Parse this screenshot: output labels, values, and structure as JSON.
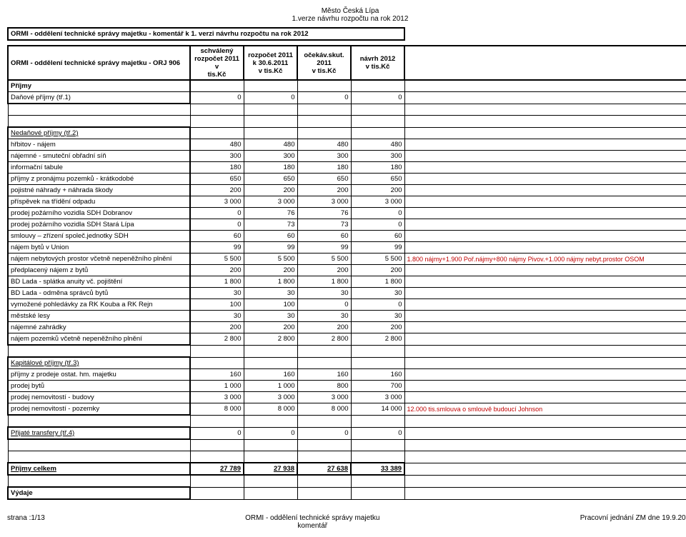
{
  "header": {
    "line1": "Město Česká Lípa",
    "line2": "1.verze návrhu rozpočtu na rok 2012"
  },
  "titleRow": "ORMI - oddělení technické správy majetku - komentář k 1. verzi návrhu rozpočtu  na rok 2012",
  "mainLabel": "ORMI - oddělení technické správy majetku - ORJ 906",
  "colHeaders": {
    "c1": "schválený rozpočet 2011 v tis.Kč",
    "c2": "rozpočet 2011 k 30.6.2011 v tis.Kč",
    "c3": "očekáv.skut. 2011 v tis.Kč",
    "c4": "návrh 2012 v tis.Kč"
  },
  "sections": {
    "prijmy": "Příjmy",
    "danove": "Daňové příjmy (tř.1)",
    "nedanove": "Nedaňové příjmy (tř.2)",
    "kapitalove": "Kapitálové příjmy (tř.3)",
    "transfery": "Přijaté transfery (tř.4)",
    "prijmyCelkem": "Příjmy celkem",
    "vydaje": "Výdaje"
  },
  "rows": {
    "danove": [
      "0",
      "0",
      "0",
      "0"
    ],
    "nedanove_items": [
      [
        "hřbitov - nájem",
        "480",
        "480",
        "480",
        "480",
        ""
      ],
      [
        "nájemné - smuteční obřadní síň",
        "300",
        "300",
        "300",
        "300",
        ""
      ],
      [
        "informační tabule",
        "180",
        "180",
        "180",
        "180",
        ""
      ],
      [
        "příjmy z pronájmu pozemků - krátkodobé",
        "650",
        "650",
        "650",
        "650",
        ""
      ],
      [
        "pojistné náhrady + náhrada škody",
        "200",
        "200",
        "200",
        "200",
        ""
      ],
      [
        "příspěvek na třídění odpadu",
        "3 000",
        "3 000",
        "3 000",
        "3 000",
        ""
      ],
      [
        "prodej požárního vozidla SDH Dobranov",
        "0",
        "76",
        "76",
        "0",
        ""
      ],
      [
        "prodej požárního vozidla SDH Stará Lípa",
        "0",
        "73",
        "73",
        "0",
        ""
      ],
      [
        "smlouvy – zřízení společ.jednotky SDH",
        "60",
        "60",
        "60",
        "60",
        ""
      ],
      [
        "nájem bytů v Union",
        "99",
        "99",
        "99",
        "99",
        ""
      ],
      [
        "nájem nebytových prostor včetně nepeněžního plnění",
        "5 500",
        "5 500",
        "5 500",
        "5 500",
        "1.800 nájmy+1.900 Poř.nájmy+800 nájmy Pivov.+1.000 nájmy nebyt.prostor OSOM"
      ],
      [
        "předplacený nájem z bytů",
        "200",
        "200",
        "200",
        "200",
        ""
      ],
      [
        "BD Lada - splátka anuity vč. pojištění",
        "1 800",
        "1 800",
        "1 800",
        "1 800",
        ""
      ],
      [
        "BD Lada - odměna správců bytů",
        "30",
        "30",
        "30",
        "30",
        ""
      ],
      [
        "vymožené pohledávky za RK Kouba a RK Rejn",
        "100",
        "100",
        "0",
        "0",
        ""
      ],
      [
        "městské lesy",
        "30",
        "30",
        "30",
        "30",
        ""
      ],
      [
        "nájemné zahrádky",
        "200",
        "200",
        "200",
        "200",
        ""
      ],
      [
        "nájem pozemků včetně nepeněžního plnění",
        "2 800",
        "2 800",
        "2 800",
        "2 800",
        ""
      ]
    ],
    "kapitalove_items": [
      [
        "příjmy z prodeje ostat. hm. majetku",
        "160",
        "160",
        "160",
        "160",
        ""
      ],
      [
        "prodej bytů",
        "1 000",
        "1 000",
        "800",
        "700",
        ""
      ],
      [
        "prodej nemovitostí - budovy",
        "3 000",
        "3 000",
        "3 000",
        "3 000",
        ""
      ],
      [
        "prodej nemovitostí - pozemky",
        "8 000",
        "8 000",
        "8 000",
        "14 000",
        "12.000 tis.smlouva o smlouvě budoucí Johnson"
      ]
    ],
    "transfery": [
      "0",
      "0",
      "0",
      "0"
    ],
    "prijmyCelkem": [
      "27 789",
      "27 938",
      "27 638",
      "33 389"
    ]
  },
  "footer": {
    "left": "strana :1/13",
    "center1": "ORMI - oddělení technické správy majetku",
    "center2": "komentář",
    "right": "Pracovní jednání ZM dne 19.9.2011"
  }
}
